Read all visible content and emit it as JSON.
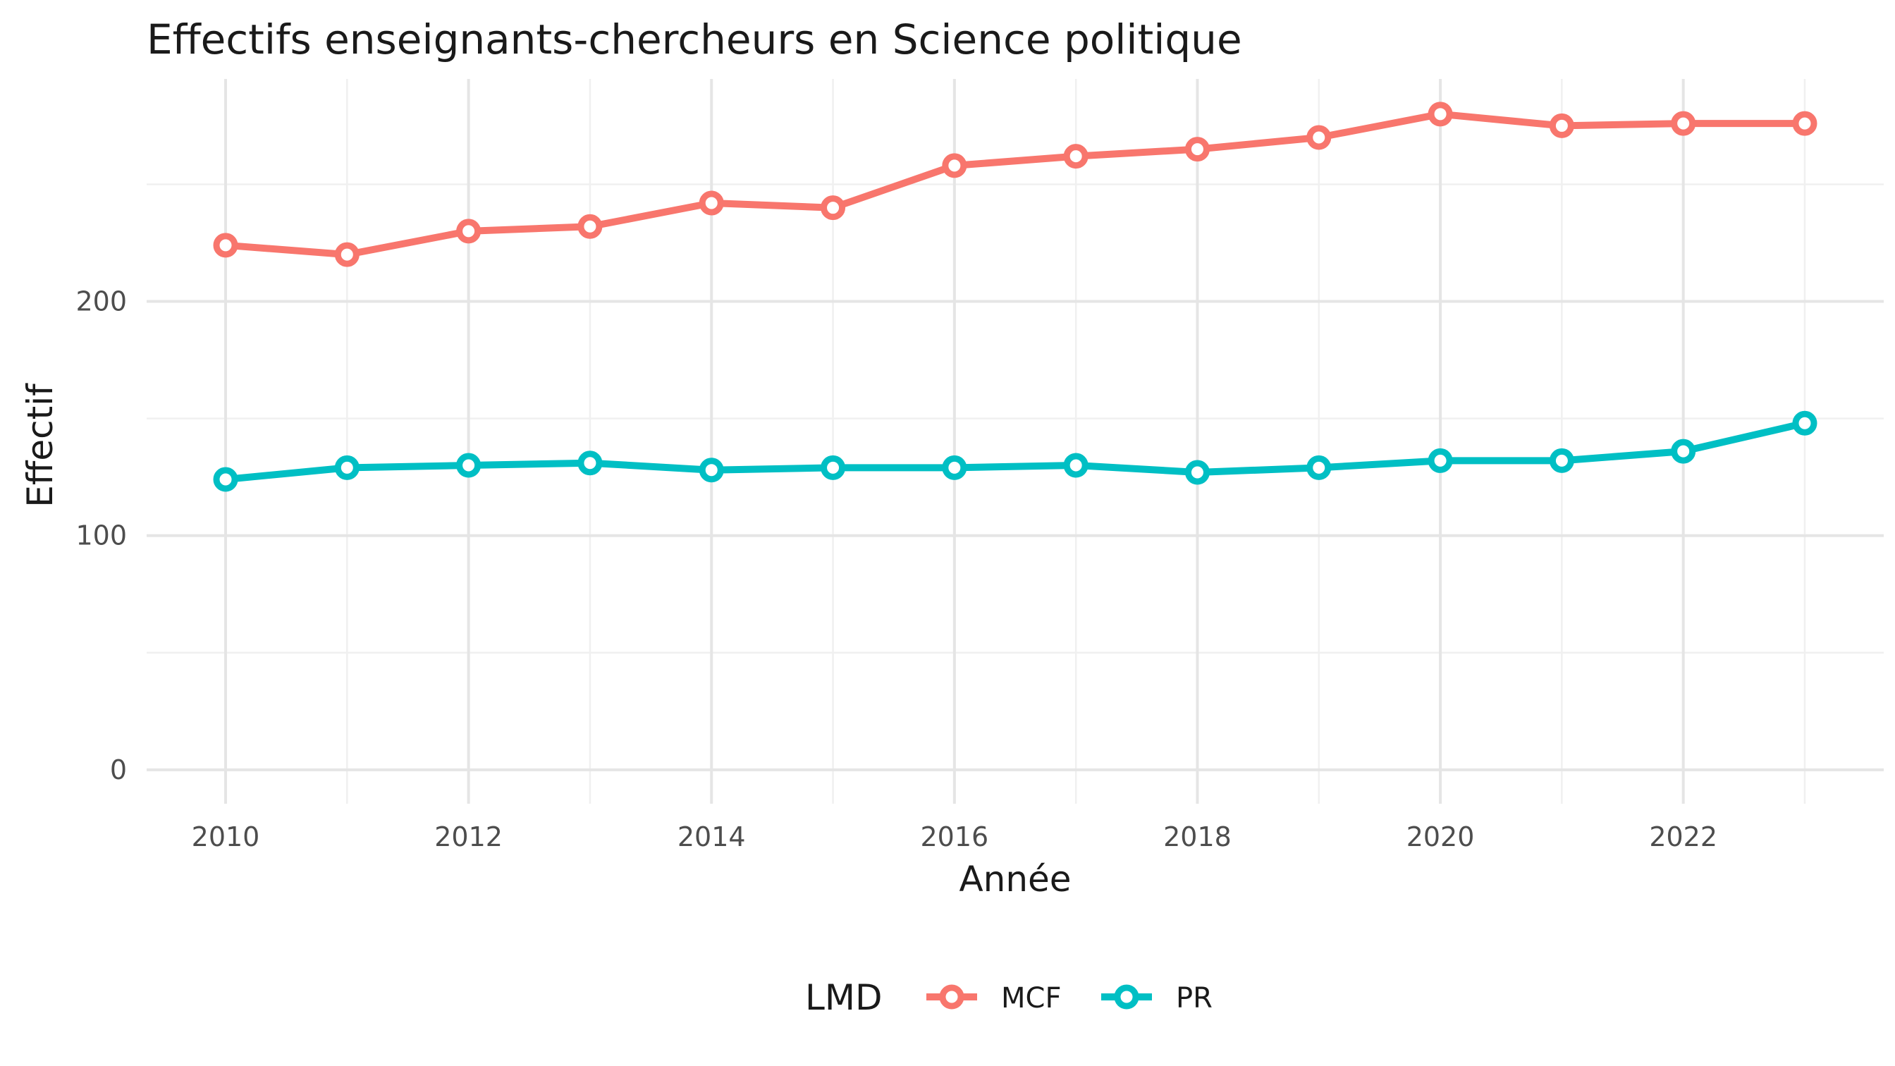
{
  "chart_data": {
    "type": "line",
    "title": "Effectifs enseignants-chercheurs en Science politique",
    "xlabel": "Année",
    "ylabel": "Effectif",
    "x": [
      2010,
      2011,
      2012,
      2013,
      2014,
      2015,
      2016,
      2017,
      2018,
      2019,
      2020,
      2021,
      2022,
      2023
    ],
    "xlim": [
      2009.35,
      2023.65
    ],
    "ylim": [
      -14.5,
      295
    ],
    "x_ticks": [
      2010,
      2012,
      2014,
      2016,
      2018,
      2020,
      2022
    ],
    "x_tick_labels": [
      "2010",
      "2012",
      "2014",
      "2016",
      "2018",
      "2020",
      "2022"
    ],
    "y_ticks": [
      0,
      100,
      200
    ],
    "y_tick_labels": [
      "0",
      "100",
      "200"
    ],
    "grid": true,
    "legend": {
      "title": "LMD",
      "position": "bottom"
    },
    "series": [
      {
        "name": "MCF",
        "color": "#f8766d",
        "values": [
          224,
          220,
          230,
          232,
          242,
          240,
          258,
          262,
          265,
          270,
          280,
          275,
          276,
          276
        ]
      },
      {
        "name": "PR",
        "color": "#00bfc4",
        "values": [
          124,
          129,
          130,
          131,
          128,
          129,
          129,
          130,
          127,
          129,
          132,
          132,
          136,
          148
        ]
      }
    ]
  }
}
